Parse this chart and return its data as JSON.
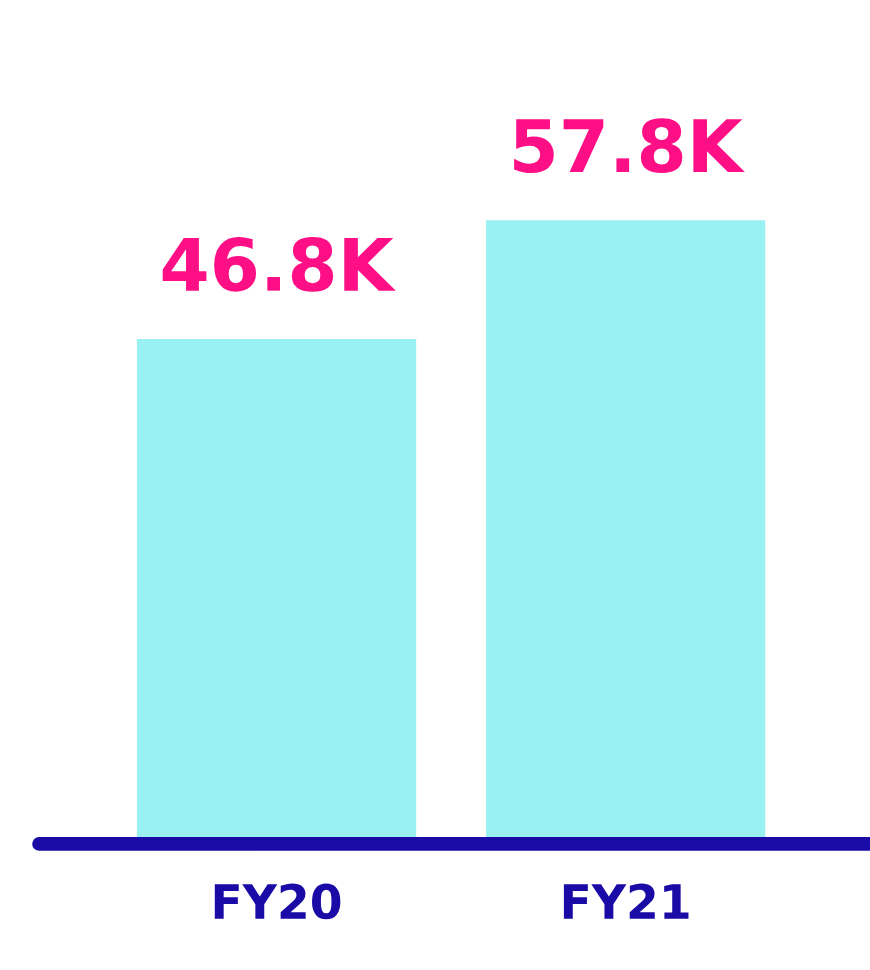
{
  "chart_data": {
    "type": "bar",
    "categories": [
      "FY20",
      "FY21"
    ],
    "values": [
      46.8,
      57.8
    ],
    "value_labels": [
      "46.8K",
      "57.8K"
    ],
    "color": "#9af1f3",
    "grid": false,
    "legend": false
  }
}
